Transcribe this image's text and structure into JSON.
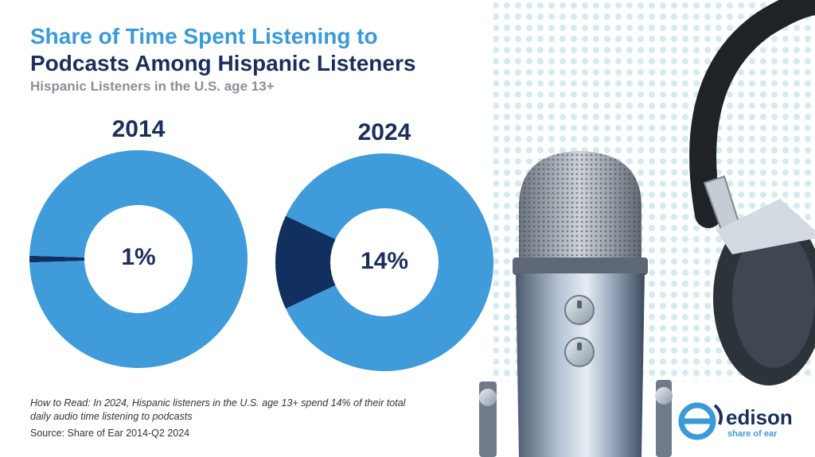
{
  "header": {
    "title_line1": "Share of Time Spent Listening to",
    "title_line2": "Podcasts Among Hispanic Listeners",
    "subtitle": "Hispanic Listeners in the U.S. age 13+"
  },
  "colors": {
    "remainder": "#3f9bd9",
    "highlight": "#12305f",
    "title_accent": "#3a9ad9",
    "title_dark": "#1a2f5a"
  },
  "chart_data": [
    {
      "type": "pie",
      "title": "2014",
      "slices": [
        {
          "value": 1,
          "color": "#12305f"
        },
        {
          "value": 99,
          "color": "#3f9bd9"
        }
      ],
      "center_label": "1%"
    },
    {
      "type": "pie",
      "title": "2024",
      "slices": [
        {
          "value": 14,
          "color": "#12305f"
        },
        {
          "value": 86,
          "color": "#3f9bd9"
        }
      ],
      "center_label": "14%"
    }
  ],
  "footer": {
    "how_to_read": "How to Read: In 2024, Hispanic listeners in the U.S. age 13+ spend 14% of their total daily audio time listening to podcasts",
    "source": "Source: Share of Ear 2014-Q2 2024"
  },
  "logo": {
    "name": "edison",
    "tagline": "share of ear"
  },
  "icons": [
    "microphone-image",
    "headphones-image",
    "edison-logo-icon"
  ]
}
